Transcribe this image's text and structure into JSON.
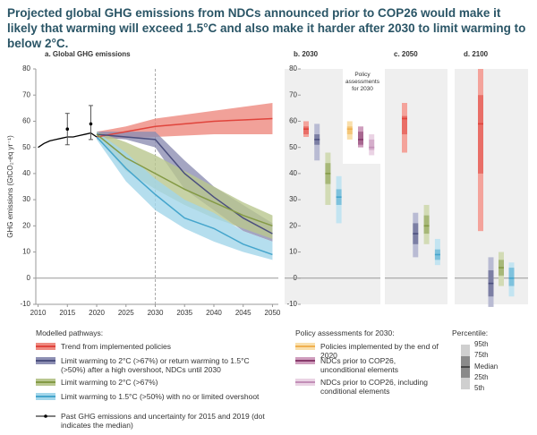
{
  "title": "Projected global GHG emissions from NDCs announced prior to COP26 would make it likely that warming will exceed 1.5°C and also make it harder after 2030 to limit warming to below 2°C.",
  "chart_data": [
    {
      "type": "area-band",
      "title": "a. Global GHG emissions",
      "y_label": "GHG emissions (GtCO₂-eq yr⁻¹)",
      "xlim": [
        2009,
        2051
      ],
      "xticks": [
        2010,
        2015,
        2020,
        2025,
        2030,
        2035,
        2040,
        2045,
        2050
      ],
      "ylim": [
        -10,
        80
      ],
      "yticks": [
        -10,
        0,
        10,
        20,
        30,
        40,
        50,
        60,
        70,
        80
      ],
      "hline": 0,
      "vline": 2030,
      "x": [
        2020,
        2025,
        2030,
        2035,
        2040,
        2045,
        2050
      ],
      "series": [
        {
          "name": "Trend from implemented policies",
          "color": "#e0443c",
          "band_color": "#ee8a80",
          "values": [
            54,
            56,
            58,
            59,
            60,
            60.5,
            61
          ],
          "lower": [
            53,
            53.5,
            54,
            54.5,
            55,
            55,
            55
          ],
          "upper": [
            56,
            58,
            61,
            62.5,
            64,
            65.5,
            67
          ]
        },
        {
          "name": "Limit warming to 2°C (>67%) or return warming to 1.5°C (>50%) after a high overshoot, NDCs until 2030",
          "color": "#4b4f7e",
          "band_color": "#8d8fb3",
          "values": [
            55,
            54,
            53,
            40,
            31,
            23,
            17
          ],
          "lower": [
            54,
            53,
            50,
            34,
            26,
            18,
            14
          ],
          "upper": [
            56,
            56,
            56,
            45,
            35,
            28,
            21
          ]
        },
        {
          "name": "Limit warming to 2°C (>67%)",
          "color": "#849a45",
          "band_color": "#b9c78f",
          "values": [
            55,
            46,
            40,
            34,
            29,
            24,
            20
          ],
          "lower": [
            54,
            41,
            34,
            28,
            23,
            19,
            15
          ],
          "upper": [
            56,
            52,
            47,
            41,
            35,
            29,
            24
          ]
        },
        {
          "name": "Limit warming to 1.5°C (>50%) with no or limited overshoot",
          "color": "#45a5cc",
          "band_color": "#a3d6ea",
          "values": [
            54,
            42,
            32,
            23,
            19,
            13,
            9
          ],
          "lower": [
            53,
            37,
            26,
            19,
            14,
            10,
            7
          ],
          "upper": [
            56,
            48,
            38,
            30,
            25,
            18,
            14
          ]
        }
      ],
      "history": {
        "x": [
          2010,
          2011,
          2012,
          2013,
          2014,
          2015,
          2016,
          2017,
          2018,
          2019,
          2020
        ],
        "values": [
          50,
          51.5,
          52.5,
          53,
          53.5,
          54,
          54,
          54.5,
          55,
          55.5,
          54
        ]
      },
      "uncertainty": {
        "name": "Past GHG emissions and uncertainty for 2015 and 2019 (dot indicates the median)",
        "x": [
          2015,
          2019
        ],
        "values": [
          57,
          59
        ],
        "lower": [
          51,
          53
        ],
        "upper": [
          63,
          66
        ]
      }
    },
    {
      "type": "range",
      "title": "b. 2030",
      "box_label": "Policy assessments for 2030",
      "legend_title": "Policy assessments for 2030:",
      "ylim": [
        -10,
        80
      ],
      "yticks": [
        -10,
        0,
        10,
        20,
        30,
        40,
        50,
        60,
        70,
        80
      ],
      "hline": 0,
      "series": [
        {
          "color": "#e0443c",
          "light": "#f4a39b",
          "values": [
            54,
            55,
            57,
            58,
            60
          ]
        },
        {
          "color": "#4b4f7e",
          "light": "#b9bbd3",
          "values": [
            45,
            51,
            53,
            55,
            59
          ]
        },
        {
          "color": "#849a45",
          "light": "#d2dbb5",
          "values": [
            28,
            36,
            40,
            44,
            48
          ]
        },
        {
          "color": "#45a5cc",
          "light": "#c3e4f1",
          "values": [
            21,
            28,
            31,
            34,
            39
          ]
        },
        {
          "name": "Policies implemented by the end of 2020",
          "color": "#f0b04f",
          "light": "#f9dfab",
          "values": [
            53,
            55,
            57,
            58,
            60
          ]
        },
        {
          "name": "NDCs prior to COP26, unconditional elements",
          "color": "#883a6c",
          "light": "#cf9dbd",
          "values": [
            50,
            51,
            53,
            56,
            58
          ]
        },
        {
          "name": "NDCs prior to COP26, including conditional elements",
          "color": "#c28fb7",
          "light": "#ead3e4",
          "values": [
            47,
            49,
            50,
            53,
            55
          ]
        }
      ]
    },
    {
      "type": "range",
      "title": "c. 2050",
      "ylim": [
        -10,
        80
      ],
      "hline": 0,
      "series": [
        {
          "color": "#e0443c",
          "light": "#f4a39b",
          "values": [
            48,
            55,
            61,
            62,
            67
          ]
        },
        {
          "color": "#4b4f7e",
          "light": "#b9bbd3",
          "values": [
            8,
            13,
            17,
            21,
            25
          ]
        },
        {
          "color": "#849a45",
          "light": "#d2dbb5",
          "values": [
            13,
            17,
            20,
            24,
            28
          ]
        },
        {
          "color": "#45a5cc",
          "light": "#c3e4f1",
          "values": [
            5,
            7,
            9,
            11,
            15
          ]
        }
      ]
    },
    {
      "type": "range",
      "title": "d. 2100",
      "ylim": [
        -10,
        80
      ],
      "hline": 0,
      "series": [
        {
          "color": "#e0443c",
          "light": "#f4a39b",
          "values": [
            18,
            40,
            59,
            70,
            80
          ]
        },
        {
          "color": "#4b4f7e",
          "light": "#b9bbd3",
          "values": [
            -11,
            -7,
            -2,
            3,
            8
          ]
        },
        {
          "color": "#849a45",
          "light": "#d2dbb5",
          "values": [
            -3,
            1,
            4,
            7,
            10
          ]
        },
        {
          "color": "#45a5cc",
          "light": "#c3e4f1",
          "values": [
            -7,
            -3,
            0,
            4,
            6
          ]
        }
      ]
    }
  ],
  "legend": {
    "title": "Modelled pathways:",
    "percentile": {
      "title": "Percentile:",
      "labels": [
        "95th",
        "75th",
        "Median",
        "25th",
        "5th"
      ]
    }
  }
}
